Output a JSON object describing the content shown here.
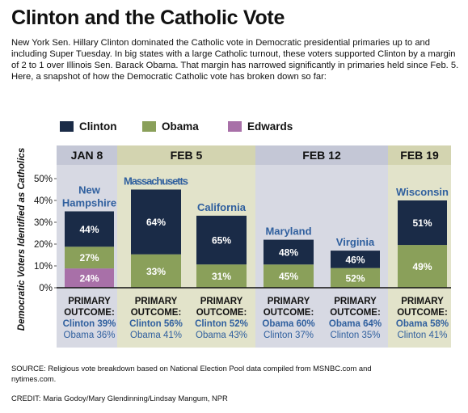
{
  "title": "Clinton and the Catholic Vote",
  "intro": "New York Sen. Hillary Clinton dominated the Catholic vote in Democratic presidential primaries up to and including Super Tuesday. In big states with a large Catholic turnout, these voters supported Clinton by a margin of 2 to 1 over Illinois Sen. Barack Obama. That margin has narrowed significantly in primaries held since Feb. 5. Here, a snapshot of how the Democratic Catholic vote has broken down so far:",
  "source": "SOURCE: Religious vote breakdown based on National Election Pool data compiled from MSNBC.com and nytimes.com.",
  "credit": "CREDIT: Maria Godoy/Mary Glendinning/Lindsay Mangum, NPR",
  "colors": {
    "clinton": "#1a2b47",
    "obama": "#8aa05a",
    "edwards": "#a870a8",
    "band_dark": "#d7d9e3",
    "band_light": "#e2e3ca",
    "header_dark": "#c4c7d6",
    "header_light": "#d3d4b0",
    "state_label": "#2f5f9e"
  },
  "chart_data": {
    "type": "bar",
    "stacked": true,
    "ylabel": "Democratic Voters Identified as Catholics",
    "ylim": [
      0,
      50
    ],
    "yticks": [
      "0%",
      "10%",
      "20%",
      "30%",
      "40%",
      "50%"
    ],
    "legend": [
      "Clinton",
      "Obama",
      "Edwards"
    ],
    "outcome_label": "PRIMARY OUTCOME:",
    "groups": [
      {
        "label": "JAN 8",
        "tone": "dark",
        "states": [
          0
        ]
      },
      {
        "label": "FEB 5",
        "tone": "light",
        "states": [
          1,
          2
        ]
      },
      {
        "label": "FEB 12",
        "tone": "dark",
        "states": [
          3,
          4
        ]
      },
      {
        "label": "FEB 19",
        "tone": "light",
        "states": [
          5
        ]
      }
    ],
    "states": [
      {
        "name": "New Hampshire",
        "name_lines": [
          "New",
          "Hampshire"
        ],
        "segments": {
          "Clinton": 44,
          "Obama": 27,
          "Edwards": 24
        },
        "segment_labels": {
          "Clinton": "44%",
          "Obama": "27%",
          "Edwards": "24%"
        },
        "catholic_share": 35,
        "outcome_winner": "Clinton 39%",
        "outcome_other": "Obama 36%"
      },
      {
        "name": "Massachusetts",
        "name_lines": [
          "Massachusetts"
        ],
        "segments": {
          "Clinton": 64,
          "Obama": 33
        },
        "segment_labels": {
          "Clinton": "64%",
          "Obama": "33%"
        },
        "catholic_share": 45,
        "outcome_winner": "Clinton 56%",
        "outcome_other": "Obama 41%"
      },
      {
        "name": "California",
        "name_lines": [
          "California"
        ],
        "segments": {
          "Clinton": 65,
          "Obama": 31
        },
        "segment_labels": {
          "Clinton": "65%",
          "Obama": "31%"
        },
        "catholic_share": 33,
        "outcome_winner": "Clinton 52%",
        "outcome_other": "Obama 43%"
      },
      {
        "name": "Maryland",
        "name_lines": [
          "Maryland"
        ],
        "segments": {
          "Clinton": 48,
          "Obama": 45
        },
        "segment_labels": {
          "Clinton": "48%",
          "Obama": "45%"
        },
        "catholic_share": 22,
        "outcome_winner": "Obama 60%",
        "outcome_other": "Clinton 37%"
      },
      {
        "name": "Virginia",
        "name_lines": [
          "Virginia"
        ],
        "segments": {
          "Clinton": 46,
          "Obama": 52
        },
        "segment_labels": {
          "Clinton": "46%",
          "Obama": "52%"
        },
        "catholic_share": 17,
        "outcome_winner": "Obama 64%",
        "outcome_other": "Clinton 35%"
      },
      {
        "name": "Wisconsin",
        "name_lines": [
          "Wisconsin"
        ],
        "segments": {
          "Clinton": 51,
          "Obama": 49
        },
        "segment_labels": {
          "Clinton": "51%",
          "Obama": "49%"
        },
        "catholic_share": 40,
        "outcome_winner": "Obama 58%",
        "outcome_other": "Clinton 41%"
      }
    ]
  }
}
